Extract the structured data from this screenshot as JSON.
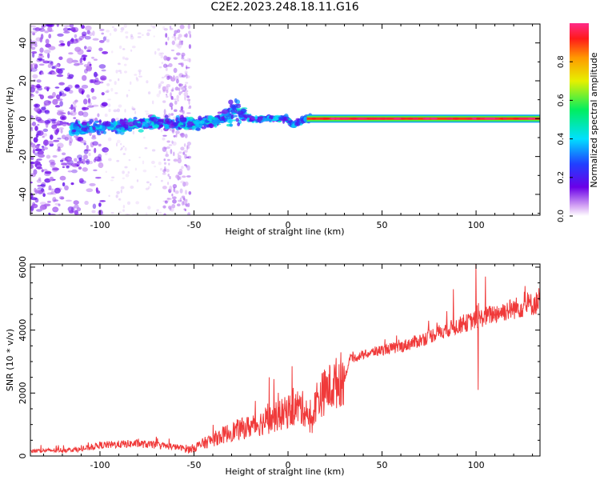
{
  "title": "C2E2.2023.248.18.11.G16",
  "chart_data": [
    {
      "type": "heatmap",
      "xlabel": "Height of straight line (km)",
      "ylabel": "Frequency (Hz)",
      "xlim": [
        -137,
        134
      ],
      "ylim": [
        -51,
        50
      ],
      "xticks": [
        -100,
        -50,
        0,
        50,
        100
      ],
      "yticks": [
        -40,
        -20,
        0,
        20,
        40
      ],
      "colorbar": {
        "label": "Normalized spectral amplitude",
        "range": [
          0,
          1
        ],
        "ticks": [
          0.0,
          0.2,
          0.4,
          0.6,
          0.8
        ],
        "colormap": "rainbow (white → purple → blue → cyan → green → yellow → orange → red → magenta)"
      },
      "features": [
        {
          "desc": "broadband scatter",
          "x_range": [
            -137,
            -97
          ],
          "y_range": [
            -51,
            50
          ],
          "amplitude": 0.1
        },
        {
          "desc": "broadband scatter",
          "x_range": [
            -66,
            -52
          ],
          "y_range": [
            -51,
            50
          ],
          "amplitude": 0.05
        },
        {
          "desc": "main tone track",
          "points": [
            [
              -115,
              -5
            ],
            [
              -90,
              -4
            ],
            [
              -70,
              -2
            ],
            [
              -50,
              -3
            ],
            [
              -35,
              0
            ],
            [
              -28,
              5
            ],
            [
              -20,
              0
            ],
            [
              0,
              0
            ],
            [
              2,
              -3
            ],
            [
              10,
              0
            ],
            [
              134,
              0
            ]
          ]
        },
        {
          "desc": "narrowband constant line",
          "x_range": [
            12,
            134
          ],
          "y": 0,
          "amplitude": 1.0
        }
      ],
      "grid": false,
      "legend": "colorbar right"
    },
    {
      "type": "line",
      "xlabel": "Height of straight line (km)",
      "ylabel": "SNR (10 * v/v)",
      "xlim": [
        -137,
        134
      ],
      "ylim": [
        0,
        6100
      ],
      "xticks": [
        -100,
        -50,
        0,
        50,
        100
      ],
      "yticks": [
        0,
        2000,
        4000,
        6000
      ],
      "series_color": "#f03a3a",
      "trend": [
        {
          "x": -137,
          "y": 150
        },
        {
          "x": -110,
          "y": 200
        },
        {
          "x": -100,
          "y": 330
        },
        {
          "x": -80,
          "y": 380
        },
        {
          "x": -60,
          "y": 280
        },
        {
          "x": -52,
          "y": 200
        },
        {
          "x": -40,
          "y": 500
        },
        {
          "x": -30,
          "y": 750
        },
        {
          "x": -20,
          "y": 900
        },
        {
          "x": -10,
          "y": 1100
        },
        {
          "x": -2,
          "y": 1300
        },
        {
          "x": 5,
          "y": 1500
        },
        {
          "x": 10,
          "y": 1400
        },
        {
          "x": 12,
          "y": 900
        },
        {
          "x": 15,
          "y": 1700
        },
        {
          "x": 20,
          "y": 2000
        },
        {
          "x": 25,
          "y": 2200
        },
        {
          "x": 30,
          "y": 2450
        },
        {
          "x": 33,
          "y": 3050
        },
        {
          "x": 40,
          "y": 3200
        },
        {
          "x": 50,
          "y": 3350
        },
        {
          "x": 60,
          "y": 3450
        },
        {
          "x": 70,
          "y": 3650
        },
        {
          "x": 80,
          "y": 3900
        },
        {
          "x": 90,
          "y": 4100
        },
        {
          "x": 100,
          "y": 4300
        },
        {
          "x": 110,
          "y": 4500
        },
        {
          "x": 120,
          "y": 4650
        },
        {
          "x": 134,
          "y": 4850
        }
      ],
      "spikes": [
        {
          "x": 100,
          "y": 6100
        },
        {
          "x": 101,
          "y": 2100
        },
        {
          "x": 105,
          "y": 5700
        },
        {
          "x": 126,
          "y": 5400
        },
        {
          "x": 88,
          "y": 5300
        },
        {
          "x": -10,
          "y": 2500
        }
      ],
      "grid": false
    }
  ]
}
